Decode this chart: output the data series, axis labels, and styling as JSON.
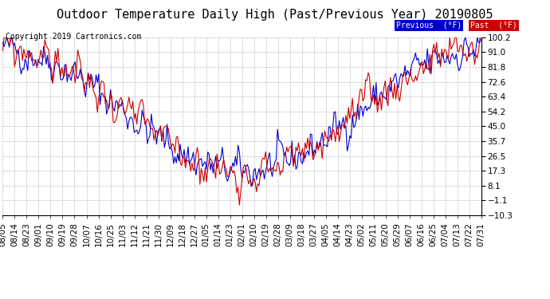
{
  "title": "Outdoor Temperature Daily High (Past/Previous Year) 20190805",
  "copyright": "Copyright 2019 Cartronics.com",
  "legend_previous_label": "Previous  (°F)",
  "legend_past_label": "Past  (°F)",
  "legend_previous_bg": "#0000cc",
  "legend_past_bg": "#cc0000",
  "line_previous_color": "#0000cc",
  "line_past_color": "#cc0000",
  "background_color": "#ffffff",
  "plot_bg_color": "#ffffff",
  "grid_color": "#bbbbbb",
  "yticks": [
    100.2,
    91.0,
    81.8,
    72.6,
    63.4,
    54.2,
    45.0,
    35.7,
    26.5,
    17.3,
    8.1,
    -1.1,
    -10.3
  ],
  "ylim": [
    -10.3,
    100.2
  ],
  "xtick_labels": [
    "08/05",
    "08/14",
    "08/23",
    "09/01",
    "09/10",
    "09/19",
    "09/28",
    "10/07",
    "10/16",
    "10/25",
    "11/03",
    "11/12",
    "11/21",
    "11/30",
    "12/09",
    "12/18",
    "12/27",
    "01/05",
    "01/14",
    "01/23",
    "02/01",
    "02/10",
    "02/19",
    "02/28",
    "03/09",
    "03/18",
    "03/27",
    "04/05",
    "04/14",
    "04/23",
    "05/02",
    "05/11",
    "05/20",
    "05/29",
    "06/07",
    "06/16",
    "06/25",
    "07/04",
    "07/13",
    "07/22",
    "07/31"
  ],
  "title_fontsize": 11,
  "copyright_fontsize": 7,
  "tick_fontsize": 7.5,
  "line_width": 0.8,
  "seed_prev": 42,
  "seed_past": 99,
  "seasonal_mean": 55,
  "seasonal_amp": 38,
  "noise_std": 8,
  "autocorr": 0.55,
  "noise_scale": 0.65
}
